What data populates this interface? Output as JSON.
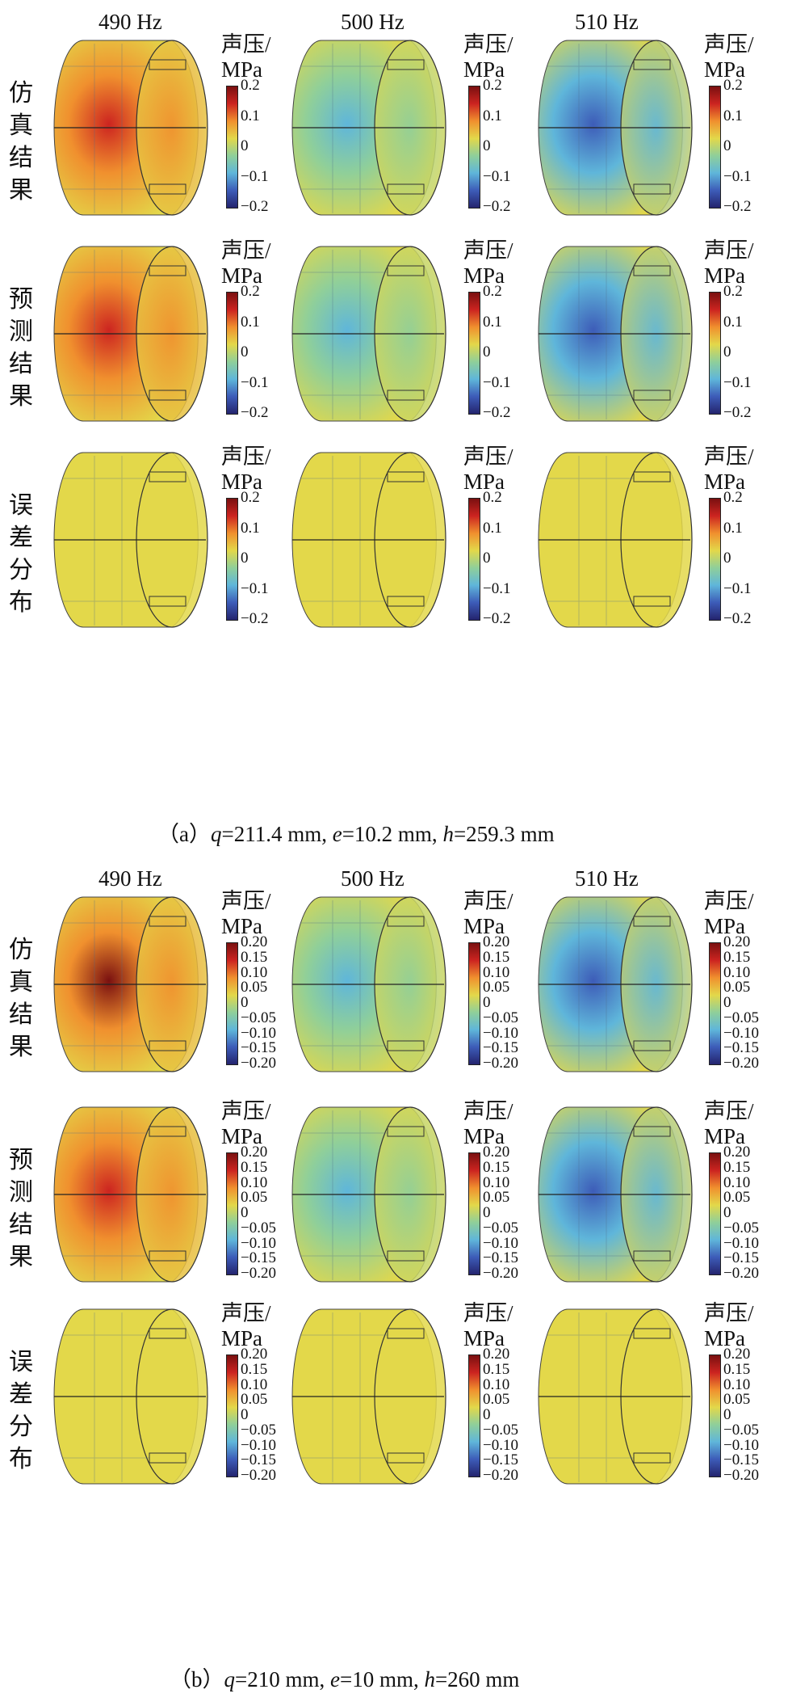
{
  "figure": {
    "frequencies": [
      "490 Hz",
      "500 Hz",
      "510 Hz"
    ],
    "row_labels": [
      [
        "仿",
        "真",
        "结",
        "果"
      ],
      [
        "预",
        "测",
        "结",
        "果"
      ],
      [
        "误",
        "差",
        "分",
        "布"
      ]
    ],
    "colorbar_title": [
      "声压/",
      "MPa"
    ],
    "ticks_a": [
      "0.2",
      "0.1",
      "0",
      "−0.1",
      "−0.2"
    ],
    "ticks_a_cut": [
      "0.2",
      "0.1",
      "0",
      "−0.1",
      "−0.2"
    ],
    "ticks_b": [
      "0.20",
      "0.15",
      "0.10",
      "0.05",
      "0",
      "−0.05",
      "−0.10",
      "−0.15",
      "−0.20"
    ],
    "ticks_b_cut": [
      "0.20",
      "0.15",
      "0.10",
      "0.05",
      "0",
      "−0.05",
      "−0.10",
      "−0.15",
      "−0.20"
    ],
    "caption_a": {
      "prefix": "（a）",
      "q": "q",
      "q_val": "=211.4 mm, ",
      "e": "e",
      "e_val": "=10.2 mm, ",
      "h": "h",
      "h_val": "=259.3 mm"
    },
    "caption_b": {
      "prefix": "（b）",
      "q": "q",
      "q_val": "=210 mm, ",
      "e": "e",
      "e_val": "=10 mm, ",
      "h": "h",
      "h_val": "=260 mm"
    },
    "colormap": [
      "#24246e",
      "#3d5cb8",
      "#5fb6da",
      "#8fcf9a",
      "#e3d84a",
      "#f0902e",
      "#cc2420",
      "#7a1010"
    ],
    "panel_values": {
      "a_sim": [
        0.16,
        -0.06,
        -0.14
      ],
      "a_pred": [
        0.17,
        -0.07,
        -0.15
      ],
      "a_err": [
        0.01,
        0.005,
        0.01
      ],
      "b_sim": [
        0.18,
        -0.06,
        -0.15
      ],
      "b_pred": [
        0.17,
        -0.08,
        -0.16
      ],
      "b_err": [
        0.02,
        0.015,
        0.02
      ]
    }
  }
}
